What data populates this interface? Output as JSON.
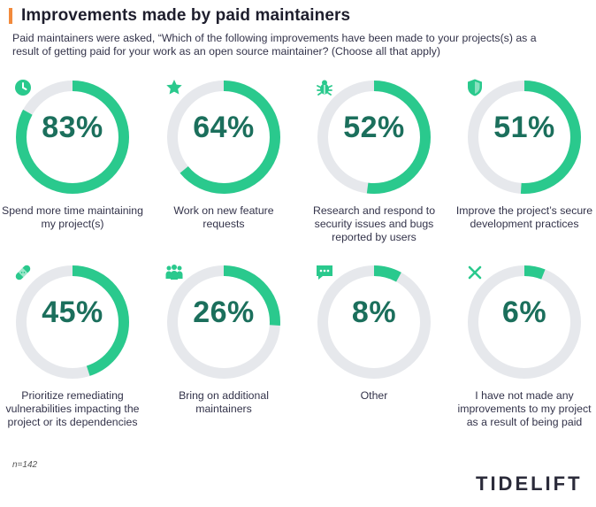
{
  "header": {
    "title": "Improvements made by paid maintainers",
    "subtitle": "Paid maintainers were asked, “Which of the following improvements have been made to your projects(s) as a result of getting paid for your work as an open source maintainer? (Choose all that apply)"
  },
  "chart_data": {
    "type": "donut",
    "title": "Improvements made by paid maintainers",
    "unit": "%",
    "items": [
      {
        "value": 83,
        "label_pct": "83%",
        "label": "Spend more time maintaining my project(s)",
        "icon": "clock-icon"
      },
      {
        "value": 64,
        "label_pct": "64%",
        "label": "Work on new feature requests",
        "icon": "star-icon"
      },
      {
        "value": 52,
        "label_pct": "52%",
        "label": "Research and respond to security issues and bugs reported by users",
        "icon": "bug-icon"
      },
      {
        "value": 51,
        "label_pct": "51%",
        "label": "Improve the project’s secure development practices",
        "icon": "shield-icon"
      },
      {
        "value": 45,
        "label_pct": "45%",
        "label": "Prioritize remediating vulnerabilities impacting the project or its dependencies",
        "icon": "bandage-icon"
      },
      {
        "value": 26,
        "label_pct": "26%",
        "label": "Bring on additional maintainers",
        "icon": "people-icon"
      },
      {
        "value": 8,
        "label_pct": "8%",
        "label": "Other",
        "icon": "chat-icon"
      },
      {
        "value": 6,
        "label_pct": "6%",
        "label": "I have not made any improvements to my project as a result of being paid",
        "icon": "x-icon"
      }
    ]
  },
  "footer": {
    "note": "n=142",
    "logo": "TIDELIFT"
  },
  "colors": {
    "accent": "#2ac98d",
    "track": "#e6e8ec",
    "percent_text": "#1b6f5c",
    "title_bar": "#f28a3c"
  }
}
